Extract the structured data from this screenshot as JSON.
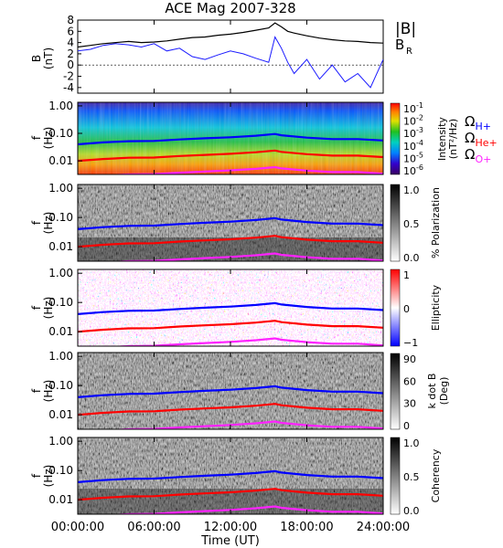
{
  "chart_data": {
    "type": "line",
    "title": "ACE Mag 2007-328",
    "xlabel": "Time (UT)",
    "x_ticks": [
      "00:00:00",
      "06:00:00",
      "12:00:00",
      "18:00:00",
      "24:00:00"
    ],
    "x_range_hours": [
      0,
      24
    ],
    "colors": {
      "B_total": "#000000",
      "B_R": "#1a1aff",
      "H_plus": "#0000ff",
      "He_plus": "#ff0000",
      "O_plus": "#ff22ff"
    },
    "panel_b": {
      "ylabel": "B",
      "yunit": "(nT)",
      "ylim": [
        -5,
        8
      ],
      "yticks": [
        "8",
        "6",
        "4",
        "2",
        "0",
        "-2",
        "-4"
      ],
      "legend": {
        "b_total": "|B|",
        "b_r_main": "B",
        "b_r_sub": "R"
      },
      "series": [
        {
          "name": "|B|",
          "color": "#000000",
          "x": [
            0,
            1,
            2,
            3,
            4,
            5,
            6,
            7,
            8,
            9,
            10,
            11,
            12,
            13,
            14,
            15,
            15.5,
            16,
            16.5,
            17,
            18,
            19,
            20,
            21,
            22,
            23,
            24
          ],
          "values": [
            3.2,
            3.5,
            3.8,
            4.0,
            4.2,
            4.0,
            4.1,
            4.3,
            4.6,
            4.9,
            5.0,
            5.3,
            5.5,
            5.8,
            6.2,
            6.6,
            7.5,
            6.8,
            6.0,
            5.7,
            5.2,
            4.8,
            4.5,
            4.3,
            4.2,
            4.0,
            3.9
          ]
        },
        {
          "name": "B_R",
          "color": "#1a1aff",
          "x": [
            0,
            1,
            2,
            3,
            4,
            5,
            6,
            7,
            8,
            9,
            10,
            11,
            12,
            13,
            14,
            15,
            15.5,
            16,
            16.5,
            17,
            18,
            19,
            20,
            21,
            22,
            23,
            24
          ],
          "values": [
            2.5,
            2.8,
            3.5,
            3.8,
            3.6,
            3.2,
            3.8,
            2.5,
            3.0,
            1.5,
            1.0,
            1.8,
            2.5,
            2.0,
            1.2,
            0.5,
            5.0,
            3.0,
            0.5,
            -1.5,
            1.0,
            -2.5,
            0.0,
            -3.0,
            -1.5,
            -4.0,
            1.0
          ]
        }
      ]
    },
    "panel_intensity": {
      "ylabel": "f",
      "yunit": "(Hz)",
      "yticks": [
        "1.00",
        "0.10",
        "0.01"
      ],
      "colorbar_label_1": "Intensity",
      "colorbar_label_2": "(nT²/Hz)",
      "colorbar_ticks": [
        {
          "base": "10",
          "exp": "-1"
        },
        {
          "base": "10",
          "exp": "-2"
        },
        {
          "base": "10",
          "exp": "-3"
        },
        {
          "base": "10",
          "exp": "-4"
        },
        {
          "base": "10",
          "exp": "-5"
        },
        {
          "base": "10",
          "exp": "-6"
        }
      ]
    },
    "panel_polarization": {
      "ylabel": "f",
      "yunit": "(Hz)",
      "yticks": [
        "1.00",
        "0.10",
        "0.01"
      ],
      "colorbar_label": "% Polarization",
      "colorbar_ticks": [
        "1.0",
        "0.5",
        "0.0"
      ]
    },
    "panel_ellipticity": {
      "ylabel": "f",
      "yunit": "(Hz)",
      "yticks": [
        "1.00",
        "0.10",
        "0.01"
      ],
      "colorbar_label": "Ellipticity",
      "colorbar_ticks": [
        "1",
        "0",
        "−1"
      ]
    },
    "panel_kdotb": {
      "ylabel": "f",
      "yunit": "(Hz)",
      "yticks": [
        "1.00",
        "0.10",
        "0.01"
      ],
      "colorbar_label_1": "k dot B",
      "colorbar_label_2": "(Deg)",
      "colorbar_ticks": [
        "90",
        "60",
        "30",
        "0"
      ]
    },
    "panel_coherency": {
      "ylabel": "f",
      "yunit": "(Hz)",
      "yticks": [
        "1.00",
        "0.10",
        "0.01"
      ],
      "colorbar_label": "Coherency",
      "colorbar_ticks": [
        "1.0",
        "0.5",
        "0.0"
      ]
    },
    "gyrofrequency_legend": [
      {
        "symbol": "Ω",
        "sub": "H+",
        "color": "#0000ff"
      },
      {
        "symbol": "Ω",
        "sub": "He+",
        "color": "#ff0000"
      },
      {
        "symbol": "Ω",
        "sub": "O+",
        "color": "#ff22ff"
      }
    ],
    "gyrofrequency_series": [
      {
        "name": "ΩH+",
        "color": "#0000ff",
        "x": [
          0,
          2,
          4,
          6,
          8,
          10,
          12,
          14,
          15.5,
          16,
          18,
          20,
          22,
          24
        ],
        "values": [
          0.04,
          0.047,
          0.052,
          0.053,
          0.06,
          0.066,
          0.072,
          0.082,
          0.095,
          0.085,
          0.07,
          0.062,
          0.062,
          0.055
        ]
      },
      {
        "name": "ΩHe+",
        "color": "#ff0000",
        "x": [
          0,
          2,
          4,
          6,
          8,
          10,
          12,
          14,
          15.5,
          16,
          18,
          20,
          22,
          24
        ],
        "values": [
          0.01,
          0.0117,
          0.013,
          0.0132,
          0.015,
          0.0165,
          0.018,
          0.0205,
          0.0237,
          0.0212,
          0.0175,
          0.0155,
          0.0155,
          0.0137
        ]
      },
      {
        "name": "ΩO+",
        "color": "#ff22ff",
        "x": [
          0,
          2,
          4,
          6,
          8,
          10,
          12,
          14,
          15.5,
          16,
          18,
          20,
          22,
          24
        ],
        "values": [
          0.0025,
          0.0029,
          0.0032,
          0.0033,
          0.0037,
          0.0041,
          0.0045,
          0.0051,
          0.0059,
          0.0053,
          0.0044,
          0.0039,
          0.0039,
          0.0034
        ]
      }
    ]
  }
}
